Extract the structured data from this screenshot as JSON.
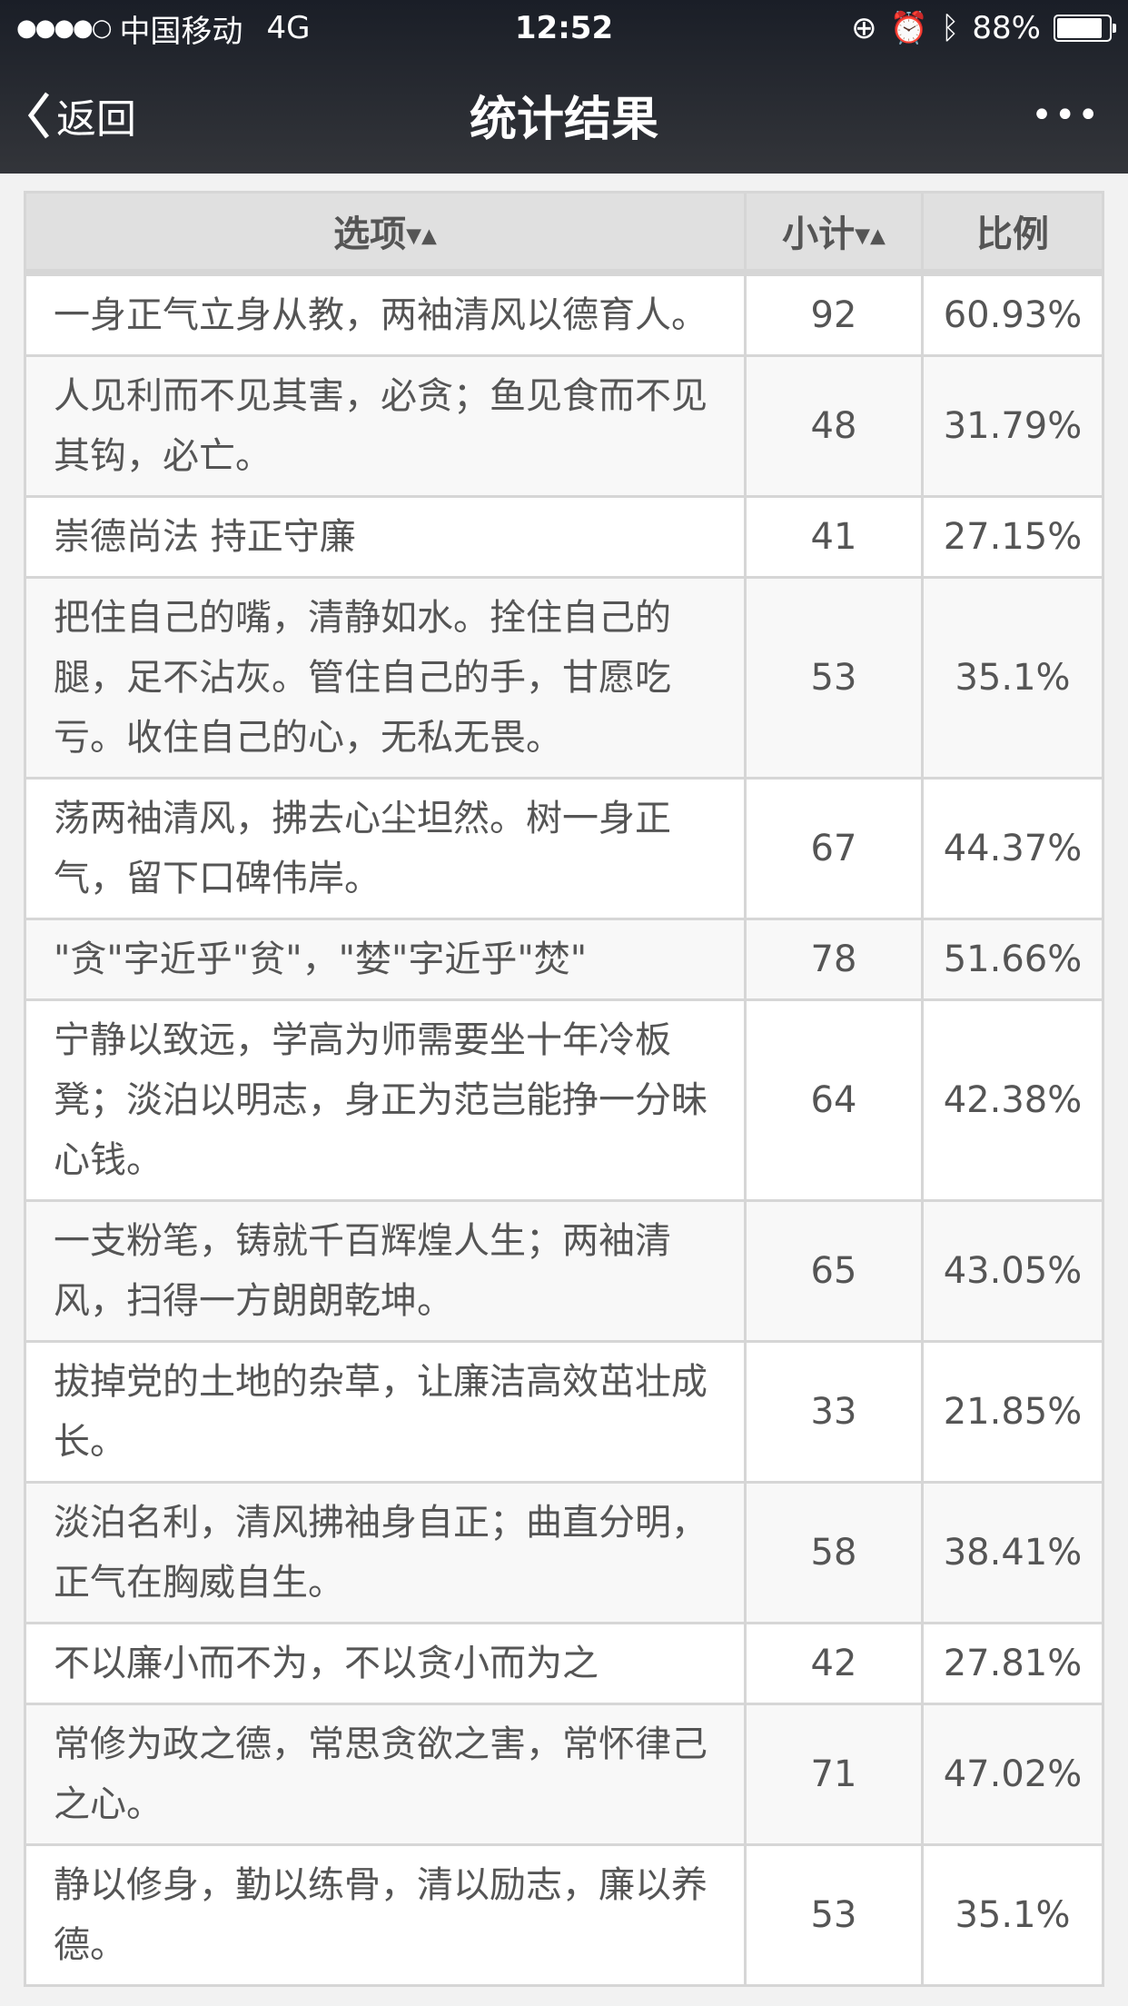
{
  "status_bar": {
    "carrier": "中国移动",
    "network": "4G",
    "time": "12:52",
    "battery": "88%",
    "battery_level": 0.88
  },
  "nav": {
    "back_label": "返回",
    "title": "统计结果",
    "more_label": "•••"
  },
  "table": {
    "headers": {
      "option": "选项",
      "count": "小计",
      "ratio": "比例"
    },
    "rows": [
      {
        "option": "一身正气立身从教，两袖清风以德育人。",
        "count": "92",
        "ratio": "60.93%"
      },
      {
        "option": "人见利而不见其害，必贪；鱼见食而不见其钩，必亡。",
        "count": "48",
        "ratio": "31.79%"
      },
      {
        "option": "崇德尚法 持正守廉",
        "count": "41",
        "ratio": "27.15%"
      },
      {
        "option": "把住自己的嘴，清静如水。拴住自己的腿，足不沾灰。管住自己的手，甘愿吃亏。收住自己的心，无私无畏。",
        "count": "53",
        "ratio": "35.1%"
      },
      {
        "option": "荡两袖清风，拂去心尘坦然。树一身正气，留下口碑伟岸。",
        "count": "67",
        "ratio": "44.37%"
      },
      {
        "option": "\"贪\"字近乎\"贫\"，\"婪\"字近乎\"焚\"",
        "count": "78",
        "ratio": "51.66%"
      },
      {
        "option": "宁静以致远，学高为师需要坐十年冷板凳；淡泊以明志，身正为范岂能挣一分昧心钱。",
        "count": "64",
        "ratio": "42.38%"
      },
      {
        "option": "一支粉笔，铸就千百辉煌人生；两袖清风，扫得一方朗朗乾坤。",
        "count": "65",
        "ratio": "43.05%"
      },
      {
        "option": "拔掉党的土地的杂草，让廉洁高效茁壮成长。",
        "count": "33",
        "ratio": "21.85%"
      },
      {
        "option": "淡泊名利，清风拂袖身自正；曲直分明，正气在胸威自生。",
        "count": "58",
        "ratio": "38.41%"
      },
      {
        "option": "不以廉小而不为，不以贪小而为之",
        "count": "42",
        "ratio": "27.81%"
      },
      {
        "option": "常修为政之德，常思贪欲之害，常怀律己之心。",
        "count": "71",
        "ratio": "47.02%"
      },
      {
        "option": "静以修身，勤以练骨，清以励志，廉以养德。",
        "count": "53",
        "ratio": "35.1%"
      }
    ]
  }
}
